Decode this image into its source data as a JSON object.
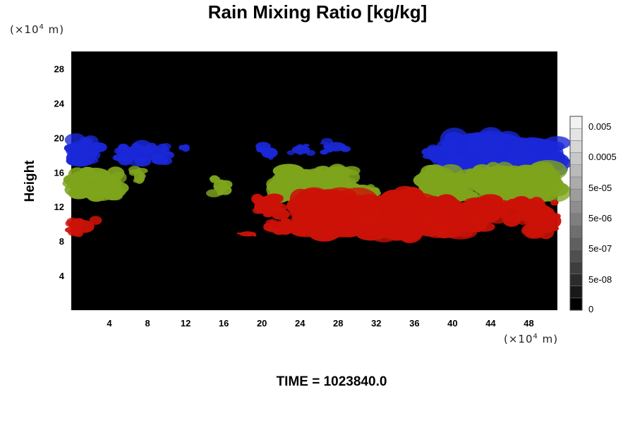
{
  "chart_data": {
    "type": "heatmap",
    "title": "Rain Mixing Ratio [kg/kg]",
    "ylabel": "Height",
    "y_unit": {
      "prefix": "(×10",
      "exp": "4",
      "suffix": " m)"
    },
    "x_unit": {
      "prefix": "(×10",
      "exp": "4",
      "suffix": " m)"
    },
    "x_ticks": [
      4,
      8,
      12,
      16,
      20,
      24,
      28,
      32,
      36,
      40,
      44,
      48
    ],
    "y_ticks": [
      4,
      8,
      12,
      16,
      20,
      24,
      28
    ],
    "xlim": [
      0,
      51
    ],
    "ylim": [
      0,
      30
    ],
    "background_color": "#000000",
    "colorbar": {
      "labels": [
        "0.005",
        "0.0005",
        "5e-05",
        "5e-06",
        "5e-07",
        "5e-08",
        "0"
      ],
      "levels": 16,
      "color_low": "#000000",
      "color_high": "#f2f2f2"
    },
    "layers": [
      {
        "color": "#1a28d8",
        "blobs": [
          {
            "x0": 0.2,
            "x1": 3.0,
            "y0": 17.0,
            "y1": 19.8
          },
          {
            "x0": 5.0,
            "x1": 10.5,
            "y0": 17.2,
            "y1": 19.2
          },
          {
            "x0": 11.5,
            "x1": 12.5,
            "y0": 18.3,
            "y1": 19.2
          },
          {
            "x0": 19.8,
            "x1": 21.8,
            "y0": 17.5,
            "y1": 19.0
          },
          {
            "x0": 23.0,
            "x1": 25.2,
            "y0": 18.0,
            "y1": 19.2
          },
          {
            "x0": 26.5,
            "x1": 29.0,
            "y0": 18.3,
            "y1": 19.6
          },
          {
            "x0": 37.2,
            "x1": 39.5,
            "y0": 17.0,
            "y1": 19.0
          },
          {
            "x0": 39.5,
            "x1": 46.0,
            "y0": 16.0,
            "y1": 20.0
          },
          {
            "x0": 43.5,
            "x1": 51.0,
            "y0": 16.2,
            "y1": 19.5
          }
        ]
      },
      {
        "color": "#7ea41c",
        "blobs": [
          {
            "x0": 0.2,
            "x1": 5.0,
            "y0": 13.2,
            "y1": 16.0
          },
          {
            "x0": 6.5,
            "x1": 7.8,
            "y0": 14.5,
            "y1": 16.3
          },
          {
            "x0": 14.8,
            "x1": 16.5,
            "y0": 13.5,
            "y1": 15.3
          },
          {
            "x0": 21.5,
            "x1": 29.5,
            "y0": 13.0,
            "y1": 16.2
          },
          {
            "x0": 29.0,
            "x1": 32.0,
            "y0": 13.0,
            "y1": 14.7
          },
          {
            "x0": 37.5,
            "x1": 42.0,
            "y0": 13.0,
            "y1": 16.2
          },
          {
            "x0": 41.5,
            "x1": 44.5,
            "y0": 14.0,
            "y1": 16.4
          },
          {
            "x0": 44.0,
            "x1": 51.0,
            "y0": 12.8,
            "y1": 16.6
          }
        ]
      },
      {
        "color": "#cc1208",
        "blobs": [
          {
            "x0": 0.0,
            "x1": 2.6,
            "y0": 8.8,
            "y1": 10.6
          },
          {
            "x0": 17.5,
            "x1": 19.5,
            "y0": 8.5,
            "y1": 9.2
          },
          {
            "x0": 19.0,
            "x1": 22.0,
            "y0": 11.0,
            "y1": 13.0
          },
          {
            "x0": 20.5,
            "x1": 23.5,
            "y0": 8.8,
            "y1": 10.5
          },
          {
            "x0": 24.0,
            "x1": 37.0,
            "y0": 9.0,
            "y1": 13.2
          },
          {
            "x0": 37.5,
            "x1": 44.0,
            "y0": 9.0,
            "y1": 12.5
          },
          {
            "x0": 42.0,
            "x1": 51.0,
            "y0": 10.5,
            "y1": 12.8
          },
          {
            "x0": 48.0,
            "x1": 51.0,
            "y0": 8.7,
            "y1": 11.0
          }
        ]
      }
    ]
  },
  "time_label": "TIME = 1023840.0"
}
